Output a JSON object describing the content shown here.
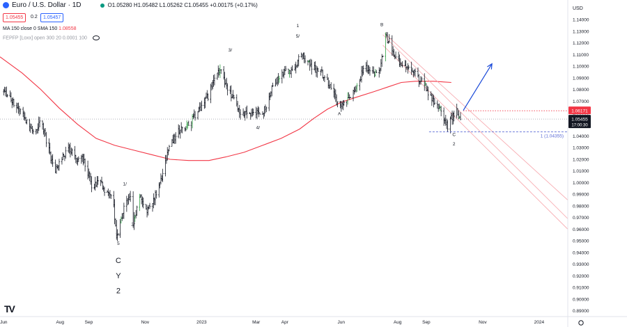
{
  "header": {
    "symbol": "Euro / U.S. Dollar · 1D",
    "ohlc": "O1.05280 H1.05482 L1.05262 C1.05455 +0.00175 (+0.17%)",
    "sell_price": "1.05455",
    "spread": "0.2",
    "buy_price": "1.05457",
    "ma_label": "MA 150 close 0 SMA 150",
    "ma_value": "1.08558",
    "fepp_label": "FEPFP [Loxx] open 300 20 0.0001 100"
  },
  "colors": {
    "candle": "#131722",
    "candle_up_highlight": "#2ea043",
    "ma": "#f23645",
    "channel": "#f7a5ab",
    "target_arrow": "#1848d8",
    "fib_line": "#5b6bd6",
    "resistance": "#f23645"
  },
  "chart_data": {
    "type": "candlestick",
    "instrument": "EUR/USD",
    "timeframe": "1D",
    "y_axis": {
      "label": "USD",
      "range": [
        0.885,
        1.152
      ],
      "ticks": [
        "1.14000",
        "1.13000",
        "1.12000",
        "1.11000",
        "1.10000",
        "1.09000",
        "1.08000",
        "1.07000",
        "1.06000",
        "1.05000",
        "1.04000",
        "1.03000",
        "1.02000",
        "1.01000",
        "1.00000",
        "0.99000",
        "0.98000",
        "0.97000",
        "0.96000",
        "0.95000",
        "0.94000",
        "0.93000",
        "0.92000",
        "0.91000",
        "0.90000",
        "0.89000"
      ]
    },
    "x_axis": {
      "ticks": [
        {
          "label": "Jun",
          "day": 0
        },
        {
          "label": "Aug",
          "day": 61
        },
        {
          "label": "Sep",
          "day": 92
        },
        {
          "label": "Nov",
          "day": 153
        },
        {
          "label": "2023",
          "day": 214
        },
        {
          "label": "Mar",
          "day": 273
        },
        {
          "label": "Apr",
          "day": 304
        },
        {
          "label": "Jun",
          "day": 365
        },
        {
          "label": "Aug",
          "day": 426
        },
        {
          "label": "Sep",
          "day": 457
        },
        {
          "label": "Nov",
          "day": 518
        },
        {
          "label": "2024",
          "day": 579
        }
      ],
      "day_range": [
        -4,
        610
      ]
    },
    "price_path": [
      [
        0,
        1.078
      ],
      [
        20,
        1.06
      ],
      [
        34,
        1.04
      ],
      [
        40,
        1.055
      ],
      [
        55,
        1.01
      ],
      [
        70,
        1.03
      ],
      [
        80,
        1.02
      ],
      [
        85,
        1.022
      ],
      [
        95,
        0.998
      ],
      [
        105,
        1.0
      ],
      [
        112,
        0.99
      ],
      [
        118,
        0.99
      ],
      [
        122,
        0.952
      ],
      [
        130,
        0.978
      ],
      [
        137,
        0.99
      ],
      [
        140,
        0.966
      ],
      [
        148,
        0.99
      ],
      [
        155,
        0.976
      ],
      [
        162,
        0.986
      ],
      [
        170,
        1.002
      ],
      [
        180,
        1.032
      ],
      [
        190,
        1.045
      ],
      [
        200,
        1.05
      ],
      [
        212,
        1.063
      ],
      [
        222,
        1.075
      ],
      [
        228,
        1.092
      ],
      [
        235,
        1.094
      ],
      [
        242,
        1.08
      ],
      [
        250,
        1.07
      ],
      [
        258,
        1.058
      ],
      [
        266,
        1.06
      ],
      [
        272,
        1.063
      ],
      [
        278,
        1.055
      ],
      [
        284,
        1.067
      ],
      [
        292,
        1.085
      ],
      [
        300,
        1.094
      ],
      [
        312,
        1.097
      ],
      [
        322,
        1.11
      ],
      [
        332,
        1.1
      ],
      [
        342,
        1.096
      ],
      [
        350,
        1.088
      ],
      [
        355,
        1.078
      ],
      [
        364,
        1.064
      ],
      [
        372,
        1.07
      ],
      [
        380,
        1.078
      ],
      [
        390,
        1.1
      ],
      [
        398,
        1.096
      ],
      [
        405,
        1.09
      ],
      [
        410,
        1.11
      ],
      [
        413,
        1.125
      ],
      [
        418,
        1.12
      ],
      [
        425,
        1.105
      ],
      [
        432,
        1.1
      ],
      [
        440,
        1.098
      ],
      [
        448,
        1.09
      ],
      [
        455,
        1.085
      ],
      [
        462,
        1.073
      ],
      [
        470,
        1.066
      ],
      [
        477,
        1.055
      ],
      [
        480,
        1.048
      ],
      [
        484,
        1.056
      ],
      [
        490,
        1.062
      ],
      [
        494,
        1.054
      ]
    ],
    "current_price": {
      "value": 1.05455,
      "label": "1.05455",
      "countdown": "17:00:30",
      "day": 494
    },
    "ma150": {
      "name": "MA 150 close 0 SMA 150",
      "value_label": "1.08558",
      "points": [
        [
          -4,
          1.108
        ],
        [
          20,
          1.094
        ],
        [
          40,
          1.08
        ],
        [
          60,
          1.064
        ],
        [
          80,
          1.05
        ],
        [
          100,
          1.038
        ],
        [
          120,
          1.032
        ],
        [
          140,
          1.028
        ],
        [
          160,
          1.024
        ],
        [
          180,
          1.02
        ],
        [
          200,
          1.019
        ],
        [
          222,
          1.019
        ],
        [
          240,
          1.022
        ],
        [
          260,
          1.026
        ],
        [
          280,
          1.032
        ],
        [
          300,
          1.038
        ],
        [
          320,
          1.046
        ],
        [
          335,
          1.055
        ],
        [
          350,
          1.063
        ],
        [
          365,
          1.069
        ],
        [
          380,
          1.073
        ],
        [
          400,
          1.078
        ],
        [
          415,
          1.082
        ],
        [
          430,
          1.086
        ],
        [
          445,
          1.087
        ],
        [
          465,
          1.087
        ],
        [
          484,
          1.086
        ]
      ]
    },
    "channel": [
      {
        "from": [
          410,
          1.127
        ],
        "to": [
          610,
          0.969
        ]
      },
      {
        "from": [
          410,
          1.118
        ],
        "to": [
          610,
          0.96
        ]
      },
      {
        "from": [
          412,
          1.128
        ],
        "to": [
          610,
          0.985
        ]
      }
    ],
    "resistance": {
      "value": 1.06171,
      "label": "1.06171",
      "from_day": 497
    },
    "fib_level": {
      "value": 1.04355,
      "label": "1 (1.04355)",
      "from_day": 460
    },
    "last_price_line": {
      "value": 1.05455
    },
    "projection": {
      "from": [
        497,
        1.062
      ],
      "to": [
        528,
        1.102
      ]
    },
    "wave_labels": [
      {
        "text": "1",
        "day": 318,
        "price": 1.1335
      },
      {
        "text": "5/",
        "day": 318,
        "price": 1.1245
      },
      {
        "text": "B",
        "day": 409,
        "price": 1.1345
      },
      {
        "text": "3/",
        "day": 245,
        "price": 1.1125
      },
      {
        "text": "4/",
        "day": 275,
        "price": 1.046
      },
      {
        "text": "A",
        "day": 363,
        "price": 1.058
      },
      {
        "text": "C",
        "day": 487,
        "price": 1.04
      },
      {
        "text": "2",
        "day": 487,
        "price": 1.032
      },
      {
        "text": "1/",
        "day": 131,
        "price": 0.9975
      },
      {
        "text": "2/",
        "day": 140,
        "price": 0.963
      },
      {
        "text": "w/",
        "day": 124,
        "price": 0.9545
      },
      {
        "text": "5",
        "day": 124,
        "price": 0.9465
      },
      {
        "text": "C",
        "day": 124,
        "price": 0.931
      },
      {
        "text": "Y",
        "day": 124,
        "price": 0.918
      },
      {
        "text": "2",
        "day": 124,
        "price": 0.905
      }
    ]
  }
}
